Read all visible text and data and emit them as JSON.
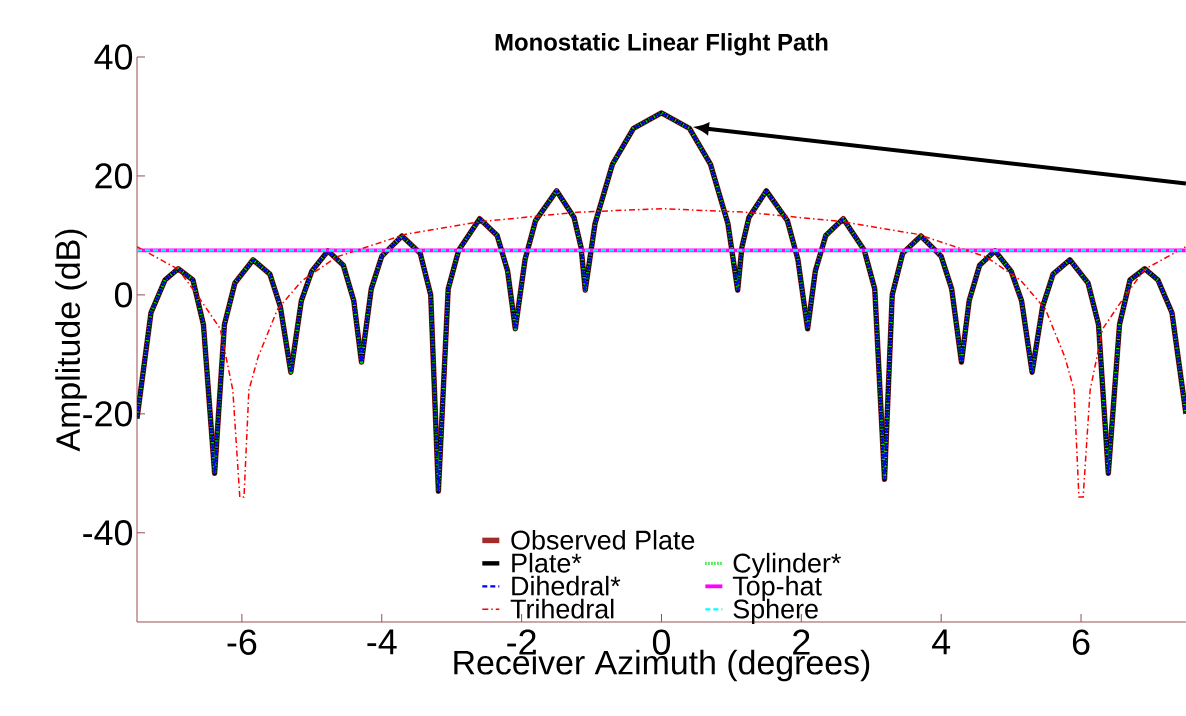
{
  "chart_data": {
    "type": "line",
    "title": "Monostatic Linear Flight Path",
    "xlabel": "Receiver Azimuth (degrees)",
    "ylabel": "Amplitude (dB)",
    "xlim": [
      -7.5,
      7.5
    ],
    "ylim": [
      -55,
      40
    ],
    "xticks": [
      -6,
      -4,
      -2,
      0,
      2,
      4,
      6
    ],
    "yticks": [
      -40,
      -20,
      0,
      20,
      40
    ],
    "grid": false,
    "legend": "bottom",
    "marker": "none",
    "series": [
      {
        "name": "Observed Plate",
        "color": "#a52a2a",
        "line_style": "solid",
        "x": [
          -7.5,
          -7.3,
          -7.1,
          -6.91,
          -6.7,
          -6.55,
          -6.39,
          -6.25,
          -6.1,
          -5.84,
          -5.6,
          -5.45,
          -5.3,
          -5.15,
          -5.0,
          -4.77,
          -4.55,
          -4.4,
          -4.29,
          -4.15,
          -4.0,
          -3.71,
          -3.45,
          -3.3,
          -3.19,
          -3.05,
          -2.9,
          -2.6,
          -2.35,
          -2.2,
          -2.09,
          -1.95,
          -1.8,
          -1.5,
          -1.25,
          -1.15,
          -1.09,
          -0.95,
          -0.7,
          -0.4,
          0,
          0.4,
          0.7,
          0.95,
          1.09,
          1.15,
          1.25,
          1.5,
          1.8,
          1.95,
          2.09,
          2.2,
          2.35,
          2.6,
          2.9,
          3.05,
          3.19,
          3.3,
          3.45,
          3.71,
          4.0,
          4.15,
          4.29,
          4.4,
          4.55,
          4.77,
          5.0,
          5.15,
          5.3,
          5.45,
          5.6,
          5.84,
          6.1,
          6.25,
          6.39,
          6.55,
          6.7,
          6.91,
          7.1,
          7.3,
          7.5
        ],
        "values": [
          -20.8,
          -3,
          2.5,
          4.4,
          2.5,
          -5,
          -30,
          -5,
          2,
          5.9,
          3.5,
          -2,
          -13,
          -1,
          4,
          7.4,
          5,
          -1,
          -11.3,
          1,
          6.5,
          9.9,
          7,
          0,
          -33,
          1,
          7.5,
          12.8,
          10,
          4,
          -5.7,
          6,
          12.5,
          17.5,
          13,
          8,
          0.8,
          12,
          22,
          28,
          30.6,
          28,
          22,
          12,
          0.8,
          8,
          13,
          17.5,
          12.5,
          6,
          -5.7,
          4,
          10,
          12.8,
          7.5,
          1,
          -31,
          0,
          7,
          9.9,
          6.5,
          1,
          -11.3,
          -1,
          5,
          7.4,
          4,
          -1,
          -13,
          -2,
          3.5,
          5.9,
          2,
          -5,
          -30,
          -5,
          2.5,
          4.4,
          2.5,
          -3,
          -20
        ]
      },
      {
        "name": "Plate*",
        "color": "#000000",
        "line_style": "solid",
        "x": [
          -7.5,
          -7.3,
          -7.1,
          -6.91,
          -6.7,
          -6.55,
          -6.39,
          -6.25,
          -6.1,
          -5.84,
          -5.6,
          -5.45,
          -5.3,
          -5.15,
          -5.0,
          -4.77,
          -4.55,
          -4.4,
          -4.29,
          -4.15,
          -4.0,
          -3.71,
          -3.45,
          -3.3,
          -3.19,
          -3.05,
          -2.9,
          -2.6,
          -2.35,
          -2.2,
          -2.09,
          -1.95,
          -1.8,
          -1.5,
          -1.25,
          -1.15,
          -1.09,
          -0.95,
          -0.7,
          -0.4,
          0,
          0.4,
          0.7,
          0.95,
          1.09,
          1.15,
          1.25,
          1.5,
          1.8,
          1.95,
          2.09,
          2.2,
          2.35,
          2.6,
          2.9,
          3.05,
          3.19,
          3.3,
          3.45,
          3.71,
          4.0,
          4.15,
          4.29,
          4.4,
          4.55,
          4.77,
          5.0,
          5.15,
          5.3,
          5.45,
          5.6,
          5.84,
          6.1,
          6.25,
          6.39,
          6.55,
          6.7,
          6.91,
          7.1,
          7.3,
          7.5
        ],
        "values": [
          -20.8,
          -3,
          2.5,
          4.4,
          2.5,
          -5,
          -30,
          -5,
          2,
          5.9,
          3.5,
          -2,
          -13,
          -1,
          4,
          7.4,
          5,
          -1,
          -11.3,
          1,
          6.5,
          9.9,
          7,
          0,
          -33,
          1,
          7.5,
          12.8,
          10,
          4,
          -5.7,
          6,
          12.5,
          17.5,
          13,
          8,
          0.8,
          12,
          22,
          28,
          30.6,
          28,
          22,
          12,
          0.8,
          8,
          13,
          17.5,
          12.5,
          6,
          -5.7,
          4,
          10,
          12.8,
          7.5,
          1,
          -31,
          0,
          7,
          9.9,
          6.5,
          1,
          -11.3,
          -1,
          5,
          7.4,
          4,
          -1,
          -13,
          -2,
          3.5,
          5.9,
          2,
          -5,
          -30,
          -5,
          2.5,
          4.4,
          2.5,
          -3,
          -20
        ]
      },
      {
        "name": "Cylinder*",
        "color": "#00e000",
        "line_style": "dotted",
        "x": [
          -7.5,
          -7.3,
          -7.1,
          -6.91,
          -6.7,
          -6.55,
          -6.39,
          -6.25,
          -6.1,
          -5.84,
          -5.6,
          -5.45,
          -5.3,
          -5.15,
          -5.0,
          -4.77,
          -4.55,
          -4.4,
          -4.29,
          -4.15,
          -4.0,
          -3.71,
          -3.45,
          -3.3,
          -3.19,
          -3.05,
          -2.9,
          -2.6,
          -2.35,
          -2.2,
          -2.09,
          -1.95,
          -1.8,
          -1.5,
          -1.25,
          -1.15,
          -1.09,
          -0.95,
          -0.7,
          -0.4,
          0,
          0.4,
          0.7,
          0.95,
          1.09,
          1.15,
          1.25,
          1.5,
          1.8,
          1.95,
          2.09,
          2.2,
          2.35,
          2.6,
          2.9,
          3.05,
          3.19,
          3.3,
          3.45,
          3.71,
          4.0,
          4.15,
          4.29,
          4.4,
          4.55,
          4.77,
          5.0,
          5.15,
          5.3,
          5.45,
          5.6,
          5.84,
          6.1,
          6.25,
          6.39,
          6.55,
          6.7,
          6.91,
          7.1,
          7.3,
          7.5
        ],
        "values": [
          -20.8,
          -3,
          2.5,
          4.4,
          2.5,
          -5,
          -30,
          -5,
          2,
          5.9,
          3.5,
          -2,
          -13,
          -1,
          4,
          7.4,
          5,
          -1,
          -11.3,
          1,
          6.5,
          9.9,
          7,
          0,
          -33,
          1,
          7.5,
          12.8,
          10,
          4,
          -5.7,
          6,
          12.5,
          17.5,
          13,
          8,
          0.8,
          12,
          22,
          28,
          30.6,
          28,
          22,
          12,
          0.8,
          8,
          13,
          17.5,
          12.5,
          6,
          -5.7,
          4,
          10,
          12.8,
          7.5,
          1,
          -31,
          0,
          7,
          9.9,
          6.5,
          1,
          -11.3,
          -1,
          5,
          7.4,
          4,
          -1,
          -13,
          -2,
          3.5,
          5.9,
          2,
          -5,
          -30,
          -5,
          2.5,
          4.4,
          2.5,
          -3,
          -20
        ]
      },
      {
        "name": "Dihedral*",
        "color": "#0000ff",
        "line_style": "dashed",
        "x": [
          -7.5,
          -7.3,
          -7.1,
          -6.91,
          -6.7,
          -6.55,
          -6.39,
          -6.25,
          -6.1,
          -5.84,
          -5.6,
          -5.45,
          -5.3,
          -5.15,
          -5.0,
          -4.77,
          -4.55,
          -4.4,
          -4.29,
          -4.15,
          -4.0,
          -3.71,
          -3.45,
          -3.3,
          -3.19,
          -3.05,
          -2.9,
          -2.6,
          -2.35,
          -2.2,
          -2.09,
          -1.95,
          -1.8,
          -1.5,
          -1.25,
          -1.15,
          -1.09,
          -0.95,
          -0.7,
          -0.4,
          0,
          0.4,
          0.7,
          0.95,
          1.09,
          1.15,
          1.25,
          1.5,
          1.8,
          1.95,
          2.09,
          2.2,
          2.35,
          2.6,
          2.9,
          3.05,
          3.19,
          3.3,
          3.45,
          3.71,
          4.0,
          4.15,
          4.29,
          4.4,
          4.55,
          4.77,
          5.0,
          5.15,
          5.3,
          5.45,
          5.6,
          5.84,
          6.1,
          6.25,
          6.39,
          6.55,
          6.7,
          6.91,
          7.1,
          7.3,
          7.5
        ],
        "values": [
          -20.8,
          -3,
          2.5,
          4.4,
          2.5,
          -5,
          -30,
          -5,
          2,
          5.9,
          3.5,
          -2,
          -13,
          -1,
          4,
          7.4,
          5,
          -1,
          -11.3,
          1,
          6.5,
          9.9,
          7,
          0,
          -33,
          1,
          7.5,
          12.8,
          10,
          4,
          -5.7,
          6,
          12.5,
          17.5,
          13,
          8,
          0.8,
          12,
          22,
          28,
          30.6,
          28,
          22,
          12,
          0.8,
          8,
          13,
          17.5,
          12.5,
          6,
          -5.7,
          4,
          10,
          12.8,
          7.5,
          1,
          -31,
          0,
          7,
          9.9,
          6.5,
          1,
          -11.3,
          -1,
          5,
          7.4,
          4,
          -1,
          -13,
          -2,
          3.5,
          5.9,
          2,
          -5,
          -30,
          -5,
          2.5,
          4.4,
          2.5,
          -3,
          -20
        ]
      },
      {
        "name": "Top-hat",
        "color": "#ff00ff",
        "line_style": "solid",
        "x": [
          -7.5,
          7.5
        ],
        "values": [
          7.5,
          7.5
        ]
      },
      {
        "name": "Trihedral",
        "color": "#ff0000",
        "line_style": "dashdot",
        "x": [
          -7.5,
          -6.91,
          -6.61,
          -6.31,
          -6.13,
          -6.03,
          -6.0,
          -5.97,
          -5.9,
          -5.77,
          -5.49,
          -5.14,
          -4.64,
          -3.66,
          -2.6,
          -1.2,
          0,
          1.2,
          2.6,
          3.66,
          4.64,
          5.14,
          5.49,
          5.77,
          5.9,
          5.97,
          6.0,
          6.03,
          6.13,
          6.31,
          6.61,
          6.91,
          7.5
        ],
        "values": [
          8.1,
          4.3,
          -0.5,
          -5.7,
          -16,
          -34,
          null,
          -34,
          -16,
          -10.5,
          -2.4,
          2.4,
          6.4,
          10.2,
          12.3,
          13.9,
          14.5,
          13.9,
          12.3,
          10.2,
          6.4,
          2.4,
          -2.4,
          -10.5,
          -16,
          -34,
          null,
          -34,
          -16,
          -5.7,
          -0.5,
          4.3,
          8.1
        ]
      },
      {
        "name": "Sphere",
        "color": "#00ffff",
        "line_style": "dashed",
        "x": [
          -7.5,
          7.5
        ],
        "values": [
          7.5,
          7.5
        ]
      }
    ]
  }
}
